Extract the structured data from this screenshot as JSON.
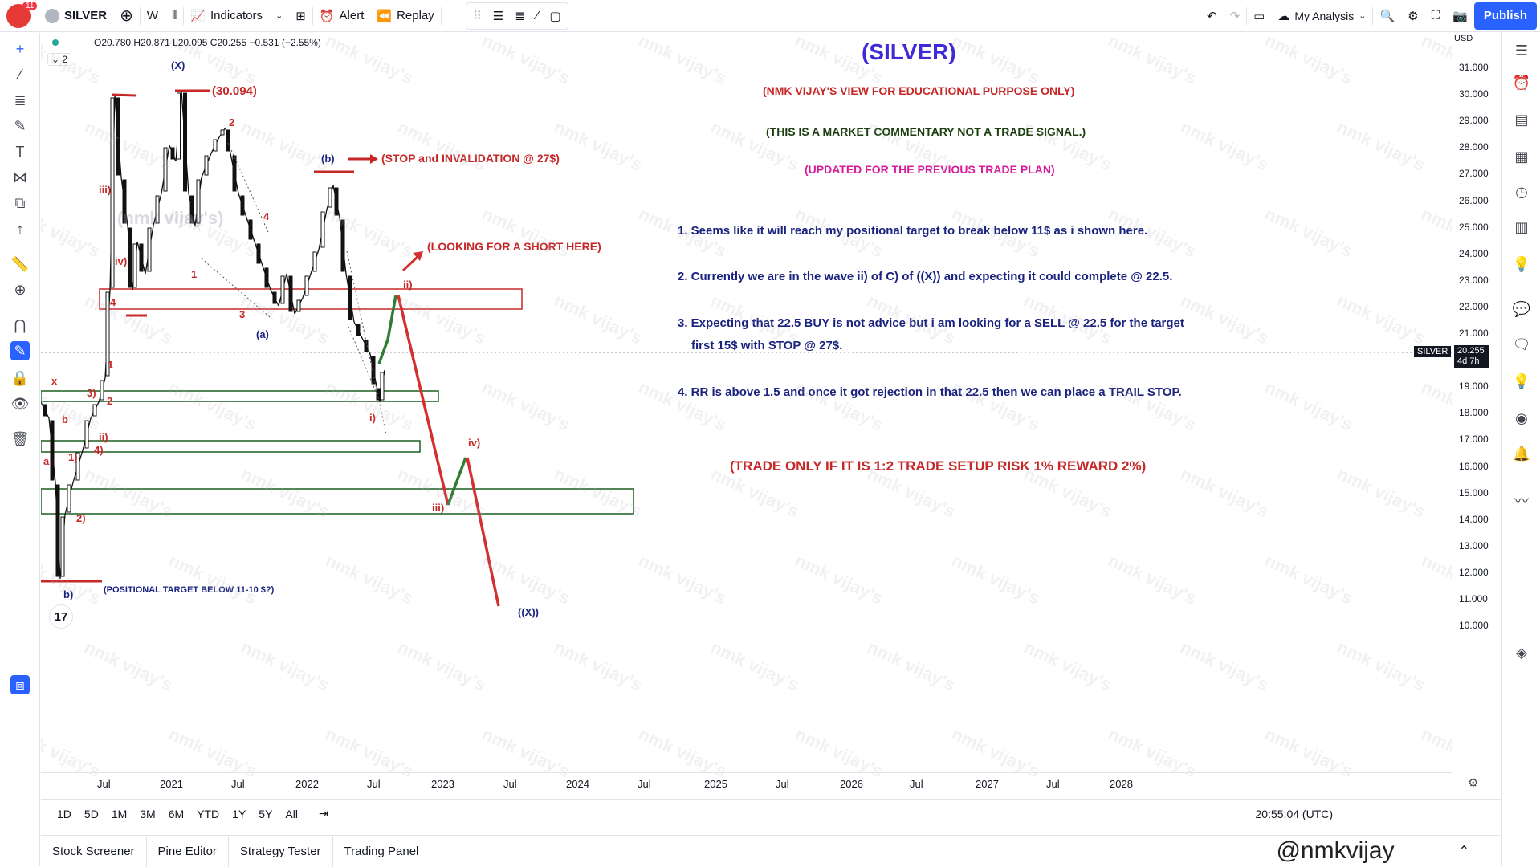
{
  "topbar": {
    "notification_count": "11",
    "symbol": "SILVER",
    "interval": "W",
    "indicators_label": "Indicators",
    "alert_label": "Alert",
    "replay_label": "Replay",
    "layout_name": "My Analysis",
    "publish_label": "Publish"
  },
  "legend": {
    "ohlc": "O20.780 H20.871 L20.095 C20.255 −0.531 (−2.55%)",
    "collapse_count": "2"
  },
  "annotations": {
    "title": "(SILVER)",
    "line1": "(NMK VIJAY'S VIEW FOR EDUCATIONAL PURPOSE ONLY)",
    "line2": "(THIS IS A MARKET COMMENTARY NOT A TRADE SIGNAL.)",
    "line3": "(UPDATED FOR THE PREVIOUS TRADE PLAN)",
    "point1": "1. Seems like it will reach my positional target to break below 11$ as i shown here.",
    "point2": "2. Currently we are in the wave ii) of C) of ((X)) and expecting it could complete @ 22.5.",
    "point3a": "3. Expecting that 22.5 BUY is not advice but i am looking for a SELL @ 22.5 for the target",
    "point3b": "first 15$ with STOP @ 27$.",
    "point4": "4. RR is above 1.5 and once it got rejection in that 22.5 then we can place a TRAIL STOP.",
    "trade_rule": "(TRADE ONLY IF IT IS 1:2 TRADE SETUP RISK 1% REWARD 2%)",
    "stop_note": "(STOP and INVALIDATION @ 27$)",
    "short_note": "(LOOKING FOR A SHORT HERE)",
    "high_note": "(30.094)",
    "target_note": "(POSITIONAL TARGET BELOW 11-10 $?)",
    "watermark": "nmk vijay's",
    "faded_label": "(nmk vijay's)"
  },
  "waves": {
    "X": "(X)",
    "b_up": "(b)",
    "a": "(a)",
    "XX": "((X))",
    "w1": "1",
    "w2": "2",
    "w3": "3",
    "w4": "4",
    "w4b": "4",
    "iii": "iii)",
    "iv": "iv)",
    "ii": "ii)",
    "i": "i)",
    "iv2": "iv)",
    "iii2": "iii)",
    "x": "x",
    "b": "b",
    "a_small": "a",
    "b_close": "b)",
    "p1": "1)",
    "p2": "2)",
    "p3": "3)",
    "p4": "4)",
    "pii": "ii)",
    "n1": "1",
    "n2": "2"
  },
  "price_axis": {
    "currency": "USD",
    "ticks": [
      "31.000",
      "30.000",
      "29.000",
      "28.000",
      "27.000",
      "26.000",
      "25.000",
      "24.000",
      "23.000",
      "22.000",
      "21.000",
      "20.000",
      "19.000",
      "18.000",
      "17.000",
      "16.000",
      "15.000",
      "14.000",
      "13.000",
      "12.000",
      "11.000",
      "10.000"
    ],
    "symbol_tag": "SILVER",
    "last_price": "20.255",
    "countdown": "4d 7h"
  },
  "time_axis": {
    "ticks": [
      "Jul",
      "2021",
      "Jul",
      "2022",
      "Jul",
      "2023",
      "Jul",
      "2024",
      "Jul",
      "2025",
      "Jul",
      "2026",
      "Jul",
      "2027",
      "Jul",
      "2028"
    ]
  },
  "range_bar": {
    "ranges": [
      "1D",
      "5D",
      "1M",
      "3M",
      "6M",
      "YTD",
      "1Y",
      "5Y",
      "All"
    ],
    "clock": "20:55:04 (UTC)"
  },
  "bottom_tabs": [
    "Stock Screener",
    "Pine Editor",
    "Strategy Tester",
    "Trading Panel"
  ],
  "brand_overlay": "@nmkvijay",
  "colors": {
    "accent": "#2962ff",
    "red_text": "#c62828",
    "blue_text": "#1a237e",
    "magenta_text": "#d81b9c",
    "zone_red": "#c62828",
    "zone_green": "#1b5e20",
    "projection_red": "#d32f2f",
    "projection_green": "#2e7d32"
  }
}
